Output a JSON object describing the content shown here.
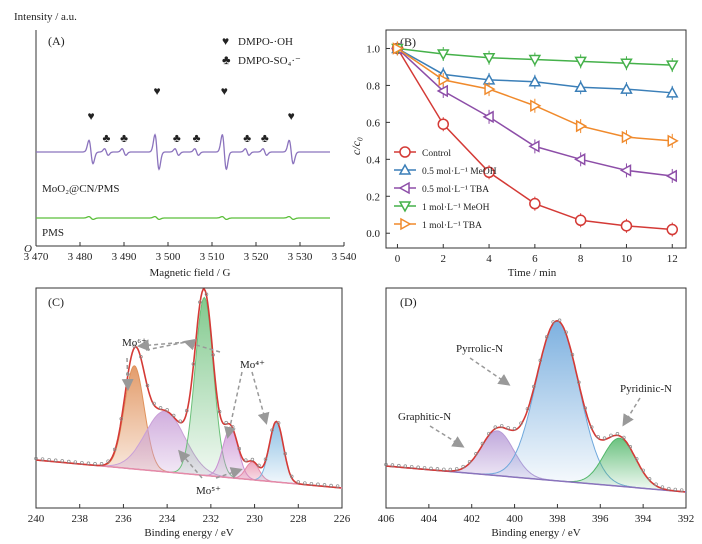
{
  "chart_data": [
    {
      "panel": "(A)",
      "type": "line",
      "ylabel": "Intensity / a.u.",
      "xlabel": "Magnetic field / G",
      "xlim": [
        3470,
        3540
      ],
      "xticks": [
        "3 470",
        "3 480",
        "3 490",
        "3 500",
        "3 510",
        "3 520",
        "3 530",
        "3 540"
      ],
      "origin_label": "O",
      "legend": [
        {
          "symbol": "♥",
          "label": "DMPO-·OH",
          "color": "#2a4fa0"
        },
        {
          "symbol": "♣",
          "label": "DMPO-SO₄·⁻",
          "color": "#e23b2e"
        }
      ],
      "series": [
        {
          "name": "MoO₂@CN/PMS",
          "color": "#8b73bd"
        },
        {
          "name": "PMS",
          "color": "#5bbf3a"
        }
      ],
      "markers": {
        "oh_fields": [
          3482.5,
          3497.5,
          3512.8,
          3528
        ],
        "so4_fields": [
          3486,
          3490,
          3502,
          3506.5,
          3518,
          3522
        ]
      }
    },
    {
      "panel": "(B)",
      "type": "line",
      "ylabel": "c/c₀",
      "xlabel": "Time / min",
      "x": [
        0,
        2,
        4,
        6,
        8,
        10,
        12
      ],
      "xlim": [
        -0.5,
        12.6
      ],
      "ylim": [
        -0.08,
        1.1
      ],
      "yticks": [
        "0.0",
        "0.2",
        "0.4",
        "0.6",
        "0.8",
        "1.0"
      ],
      "xticks": [
        "0",
        "2",
        "4",
        "6",
        "8",
        "10",
        "12"
      ],
      "legend_position": "lower-left",
      "series": [
        {
          "name": "Control",
          "color": "#d43a36",
          "marker": "circle",
          "values": [
            1.0,
            0.59,
            0.33,
            0.16,
            0.07,
            0.04,
            0.02
          ]
        },
        {
          "name": "0.5 mol·L⁻¹ MeOH",
          "color": "#3b7fb8",
          "marker": "triangle-up",
          "values": [
            1.0,
            0.86,
            0.83,
            0.82,
            0.79,
            0.78,
            0.76
          ]
        },
        {
          "name": "0.5 mol·L⁻¹ TBA",
          "color": "#8d4ea8",
          "marker": "triangle-left",
          "values": [
            1.0,
            0.77,
            0.63,
            0.47,
            0.4,
            0.34,
            0.31
          ]
        },
        {
          "name": "1 mol·L⁻¹ MeOH",
          "color": "#45b14a",
          "marker": "triangle-down",
          "values": [
            1.0,
            0.97,
            0.95,
            0.94,
            0.93,
            0.92,
            0.91
          ]
        },
        {
          "name": "1 mol·L⁻¹ TBA",
          "color": "#f08a2c",
          "marker": "triangle-right",
          "values": [
            1.0,
            0.83,
            0.78,
            0.69,
            0.58,
            0.52,
            0.5
          ]
        }
      ]
    },
    {
      "panel": "(C)",
      "type": "line",
      "xlabel": "Binding energy / eV",
      "xlim": [
        240,
        226
      ],
      "xticks": [
        "240",
        "238",
        "236",
        "234",
        "232",
        "230",
        "228",
        "226"
      ],
      "annotations": [
        "Mo⁶⁺",
        "Mo⁴⁺",
        "Mo⁵⁺"
      ],
      "peaks": [
        {
          "center": 235.5,
          "height": 0.58,
          "width": 0.45,
          "color": "#e0915a"
        },
        {
          "center": 234.1,
          "height": 0.34,
          "width": 0.9,
          "color": "#c9a0d8"
        },
        {
          "center": 232.3,
          "height": 1.0,
          "width": 0.42,
          "color": "#6cc07a"
        },
        {
          "center": 231.1,
          "height": 0.28,
          "width": 0.35,
          "color": "#c98fd2"
        },
        {
          "center": 230.1,
          "height": 0.1,
          "width": 0.3,
          "color": "#e68aa8"
        },
        {
          "center": 229.0,
          "height": 0.34,
          "width": 0.32,
          "color": "#7bb6e0"
        }
      ]
    },
    {
      "panel": "(D)",
      "type": "line",
      "xlabel": "Binding energy / eV",
      "xlim": [
        406,
        392
      ],
      "xticks": [
        "406",
        "404",
        "402",
        "400",
        "398",
        "396",
        "394",
        "392"
      ],
      "peaks": [
        {
          "name": "Graphitic-N",
          "center": 400.8,
          "height": 0.28,
          "width": 0.75,
          "color": "#b69ad6"
        },
        {
          "name": "Pyrrolic-N",
          "center": 398.0,
          "height": 1.0,
          "width": 1.0,
          "color": "#6fa8dc"
        },
        {
          "name": "Pyridinic-N",
          "center": 395.1,
          "height": 0.3,
          "width": 0.75,
          "color": "#52b76a"
        }
      ]
    }
  ]
}
